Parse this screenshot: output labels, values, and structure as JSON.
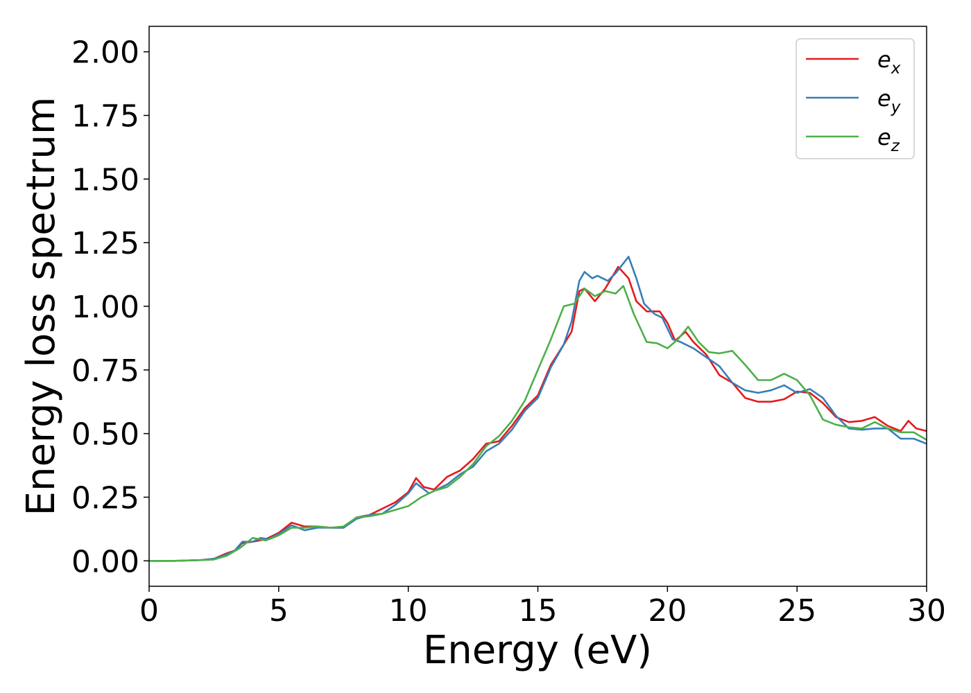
{
  "chart_data": {
    "type": "line",
    "title": "",
    "xlabel": "Energy (eV)",
    "ylabel": "Energy loss spectrum",
    "xlim": [
      0,
      30
    ],
    "ylim": [
      -0.1,
      2.1
    ],
    "xticks": [
      "0",
      "5",
      "10",
      "15",
      "20",
      "25",
      "30"
    ],
    "xtick_values": [
      0,
      5,
      10,
      15,
      20,
      25,
      30
    ],
    "yticks": [
      "0.00",
      "0.25",
      "0.50",
      "0.75",
      "1.00",
      "1.25",
      "1.50",
      "1.75",
      "2.00"
    ],
    "ytick_values": [
      0,
      0.25,
      0.5,
      0.75,
      1.0,
      1.25,
      1.5,
      1.75,
      2.0
    ],
    "grid": false,
    "legend_position": "top-right",
    "series": [
      {
        "name": "e",
        "subscript": "x",
        "color": "#e41a1c",
        "points": [
          [
            0,
            0
          ],
          [
            1,
            0
          ],
          [
            2,
            0.003
          ],
          [
            2.5,
            0.008
          ],
          [
            3,
            0.03
          ],
          [
            3.3,
            0.04
          ],
          [
            3.6,
            0.07
          ],
          [
            4,
            0.075
          ],
          [
            4.5,
            0.085
          ],
          [
            5,
            0.11
          ],
          [
            5.5,
            0.15
          ],
          [
            6,
            0.135
          ],
          [
            6.5,
            0.135
          ],
          [
            7,
            0.13
          ],
          [
            7.5,
            0.13
          ],
          [
            8,
            0.17
          ],
          [
            8.5,
            0.18
          ],
          [
            9,
            0.205
          ],
          [
            9.5,
            0.23
          ],
          [
            10,
            0.27
          ],
          [
            10.3,
            0.325
          ],
          [
            10.6,
            0.29
          ],
          [
            11,
            0.28
          ],
          [
            11.5,
            0.33
          ],
          [
            12,
            0.355
          ],
          [
            12.5,
            0.4
          ],
          [
            13,
            0.46
          ],
          [
            13.5,
            0.47
          ],
          [
            14,
            0.53
          ],
          [
            14.5,
            0.6
          ],
          [
            15,
            0.65
          ],
          [
            15.5,
            0.77
          ],
          [
            16,
            0.85
          ],
          [
            16.3,
            0.9
          ],
          [
            16.6,
            1.06
          ],
          [
            16.8,
            1.07
          ],
          [
            17.2,
            1.02
          ],
          [
            17.6,
            1.07
          ],
          [
            18.1,
            1.155
          ],
          [
            18.5,
            1.11
          ],
          [
            18.8,
            1.02
          ],
          [
            19.2,
            0.98
          ],
          [
            19.7,
            0.98
          ],
          [
            20,
            0.935
          ],
          [
            20.3,
            0.865
          ],
          [
            20.7,
            0.9
          ],
          [
            21,
            0.86
          ],
          [
            21.5,
            0.81
          ],
          [
            22,
            0.73
          ],
          [
            22.5,
            0.7
          ],
          [
            23,
            0.64
          ],
          [
            23.5,
            0.625
          ],
          [
            24,
            0.625
          ],
          [
            24.5,
            0.635
          ],
          [
            25,
            0.665
          ],
          [
            25.5,
            0.66
          ],
          [
            26,
            0.62
          ],
          [
            26.5,
            0.565
          ],
          [
            27,
            0.545
          ],
          [
            27.5,
            0.55
          ],
          [
            28,
            0.565
          ],
          [
            28.5,
            0.53
          ],
          [
            29,
            0.51
          ],
          [
            29.3,
            0.55
          ],
          [
            29.6,
            0.52
          ],
          [
            30,
            0.51
          ]
        ]
      },
      {
        "name": "e",
        "subscript": "y",
        "color": "#377eb8",
        "points": [
          [
            0,
            0
          ],
          [
            1,
            0
          ],
          [
            2,
            0.003
          ],
          [
            2.5,
            0.008
          ],
          [
            3,
            0.025
          ],
          [
            3.3,
            0.04
          ],
          [
            3.6,
            0.075
          ],
          [
            4,
            0.075
          ],
          [
            4.3,
            0.09
          ],
          [
            4.6,
            0.085
          ],
          [
            5,
            0.105
          ],
          [
            5.5,
            0.14
          ],
          [
            6,
            0.12
          ],
          [
            6.5,
            0.13
          ],
          [
            7,
            0.13
          ],
          [
            7.5,
            0.13
          ],
          [
            8,
            0.165
          ],
          [
            8.5,
            0.18
          ],
          [
            9,
            0.185
          ],
          [
            9.5,
            0.22
          ],
          [
            10,
            0.265
          ],
          [
            10.3,
            0.305
          ],
          [
            10.8,
            0.265
          ],
          [
            11,
            0.275
          ],
          [
            11.5,
            0.3
          ],
          [
            12,
            0.34
          ],
          [
            12.5,
            0.37
          ],
          [
            13,
            0.43
          ],
          [
            13.5,
            0.46
          ],
          [
            14,
            0.515
          ],
          [
            14.5,
            0.59
          ],
          [
            15,
            0.64
          ],
          [
            15.5,
            0.76
          ],
          [
            16,
            0.85
          ],
          [
            16.3,
            0.94
          ],
          [
            16.6,
            1.1
          ],
          [
            16.8,
            1.135
          ],
          [
            17.1,
            1.11
          ],
          [
            17.3,
            1.12
          ],
          [
            17.7,
            1.1
          ],
          [
            18,
            1.13
          ],
          [
            18.5,
            1.195
          ],
          [
            18.8,
            1.11
          ],
          [
            19.1,
            1.01
          ],
          [
            19.5,
            0.97
          ],
          [
            19.8,
            0.955
          ],
          [
            20.2,
            0.87
          ],
          [
            20.5,
            0.86
          ],
          [
            21,
            0.835
          ],
          [
            21.5,
            0.8
          ],
          [
            22,
            0.765
          ],
          [
            22.5,
            0.7
          ],
          [
            23,
            0.67
          ],
          [
            23.5,
            0.66
          ],
          [
            24,
            0.67
          ],
          [
            24.5,
            0.69
          ],
          [
            25,
            0.66
          ],
          [
            25.5,
            0.675
          ],
          [
            26,
            0.64
          ],
          [
            26.5,
            0.57
          ],
          [
            27,
            0.52
          ],
          [
            27.5,
            0.515
          ],
          [
            28,
            0.52
          ],
          [
            28.5,
            0.52
          ],
          [
            29,
            0.48
          ],
          [
            29.5,
            0.48
          ],
          [
            30,
            0.46
          ]
        ]
      },
      {
        "name": "e",
        "subscript": "z",
        "color": "#4daf4a",
        "points": [
          [
            0,
            0
          ],
          [
            1,
            0
          ],
          [
            2,
            0.003
          ],
          [
            2.5,
            0.005
          ],
          [
            3,
            0.02
          ],
          [
            3.5,
            0.05
          ],
          [
            4,
            0.09
          ],
          [
            4.5,
            0.08
          ],
          [
            5,
            0.1
          ],
          [
            5.5,
            0.13
          ],
          [
            6,
            0.13
          ],
          [
            6.5,
            0.135
          ],
          [
            7,
            0.13
          ],
          [
            7.5,
            0.135
          ],
          [
            8,
            0.17
          ],
          [
            8.5,
            0.175
          ],
          [
            9,
            0.185
          ],
          [
            9.5,
            0.2
          ],
          [
            10,
            0.215
          ],
          [
            10.5,
            0.25
          ],
          [
            11,
            0.275
          ],
          [
            11.5,
            0.29
          ],
          [
            12,
            0.33
          ],
          [
            12.5,
            0.38
          ],
          [
            13,
            0.45
          ],
          [
            13.5,
            0.49
          ],
          [
            14,
            0.55
          ],
          [
            14.5,
            0.63
          ],
          [
            15,
            0.75
          ],
          [
            15.5,
            0.87
          ],
          [
            16,
            1.0
          ],
          [
            16.4,
            1.01
          ],
          [
            16.8,
            1.07
          ],
          [
            17.2,
            1.04
          ],
          [
            17.6,
            1.06
          ],
          [
            18,
            1.05
          ],
          [
            18.3,
            1.08
          ],
          [
            18.7,
            0.97
          ],
          [
            19.2,
            0.86
          ],
          [
            19.6,
            0.855
          ],
          [
            20,
            0.835
          ],
          [
            20.4,
            0.87
          ],
          [
            20.8,
            0.92
          ],
          [
            21.2,
            0.86
          ],
          [
            21.6,
            0.82
          ],
          [
            22,
            0.815
          ],
          [
            22.5,
            0.825
          ],
          [
            23,
            0.77
          ],
          [
            23.5,
            0.71
          ],
          [
            24,
            0.71
          ],
          [
            24.5,
            0.735
          ],
          [
            25,
            0.71
          ],
          [
            25.5,
            0.65
          ],
          [
            26,
            0.555
          ],
          [
            26.5,
            0.535
          ],
          [
            27,
            0.525
          ],
          [
            27.5,
            0.52
          ],
          [
            28,
            0.545
          ],
          [
            28.5,
            0.52
          ],
          [
            29,
            0.505
          ],
          [
            29.5,
            0.505
          ],
          [
            30,
            0.475
          ]
        ]
      }
    ]
  }
}
